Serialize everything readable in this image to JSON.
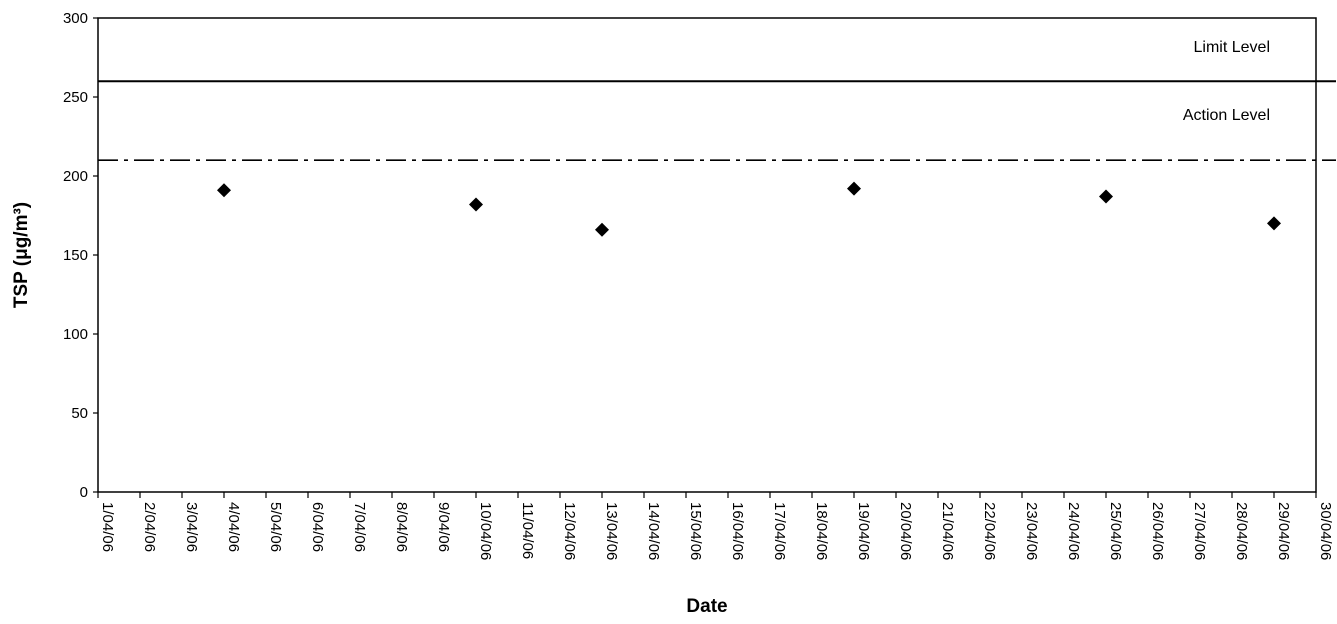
{
  "chart_data": {
    "type": "scatter",
    "title": "",
    "xlabel": "Date",
    "ylabel": "TSP (μg/m³)",
    "ylim": [
      0,
      300
    ],
    "yticks": [
      "0",
      "50",
      "100",
      "150",
      "200",
      "250",
      "300"
    ],
    "xlim": [
      "1/04/06",
      "30/04/06"
    ],
    "x_tick_labels": [
      "1/04/06",
      "2/04/06",
      "3/04/06",
      "4/04/06",
      "5/04/06",
      "6/04/06",
      "7/04/06",
      "8/04/06",
      "9/04/06",
      "10/04/06",
      "11/04/06",
      "12/04/06",
      "13/04/06",
      "14/04/06",
      "15/04/06",
      "16/04/06",
      "17/04/06",
      "18/04/06",
      "19/04/06",
      "20/04/06",
      "21/04/06",
      "22/04/06",
      "23/04/06",
      "24/04/06",
      "25/04/06",
      "26/04/06",
      "27/04/06",
      "28/04/06",
      "29/04/06",
      "30/04/06"
    ],
    "grid": false,
    "points": [
      {
        "x": "4/04/06",
        "y": 191
      },
      {
        "x": "10/04/06",
        "y": 182
      },
      {
        "x": "13/04/06",
        "y": 166
      },
      {
        "x": "19/04/06",
        "y": 192
      },
      {
        "x": "25/04/06",
        "y": 187
      },
      {
        "x": "29/04/06",
        "y": 170
      }
    ],
    "reference_lines": [
      {
        "label": "Limit Level",
        "value": 260,
        "style": "solid"
      },
      {
        "label": "Action Level",
        "value": 210,
        "style": "dash-dot"
      }
    ],
    "marker": "diamond",
    "marker_color": "#000000"
  }
}
